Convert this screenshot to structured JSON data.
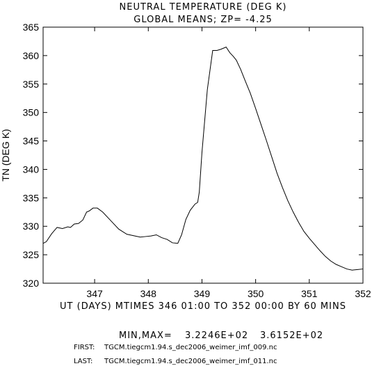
{
  "chart_data": {
    "type": "line",
    "title": "NEUTRAL TEMPERATURE (DEG K)",
    "subtitle": "GLOBAL MEANS; ZP= -4.25",
    "ylabel": "TN (DEG K)",
    "xlabel": "UT (DAYS) MTIMES 346 01:00 TO 352 00:00 BY    60 MINS",
    "xlim": [
      346.04,
      352.0
    ],
    "ylim": [
      320,
      365
    ],
    "xticks": [
      347,
      348,
      349,
      350,
      351,
      352
    ],
    "yticks": [
      320,
      325,
      330,
      335,
      340,
      345,
      350,
      355,
      360,
      365
    ],
    "grid": false,
    "series": [
      {
        "x": [
          346.04,
          346.1,
          346.2,
          346.3,
          346.4,
          346.5,
          346.55,
          346.62,
          346.7,
          346.78,
          346.85,
          346.9,
          346.97,
          347.05,
          347.15,
          347.3,
          347.45,
          347.6,
          347.75,
          347.85,
          347.95,
          348.05,
          348.15,
          348.25,
          348.35,
          348.45,
          348.55,
          348.62,
          348.7,
          348.78,
          348.87,
          348.92,
          348.95,
          349.0,
          349.1,
          349.2,
          349.28,
          349.35,
          349.45,
          349.52,
          349.58,
          349.64,
          349.72,
          349.8,
          349.9,
          350.0,
          350.1,
          350.2,
          350.3,
          350.4,
          350.5,
          350.6,
          350.7,
          350.8,
          350.9,
          351.0,
          351.1,
          351.2,
          351.3,
          351.4,
          351.5,
          351.6,
          351.7,
          351.8,
          351.9,
          352.0
        ],
        "values": [
          327.0,
          327.3,
          328.7,
          329.8,
          329.6,
          329.9,
          329.8,
          330.4,
          330.5,
          331.1,
          332.5,
          332.7,
          333.2,
          333.2,
          332.5,
          331.0,
          329.5,
          328.6,
          328.3,
          328.1,
          328.2,
          328.3,
          328.5,
          328.0,
          327.7,
          327.1,
          327.0,
          328.5,
          331.2,
          332.8,
          333.9,
          334.2,
          336.0,
          343.0,
          354.0,
          360.9,
          360.9,
          361.1,
          361.5,
          360.5,
          359.9,
          359.2,
          357.6,
          355.7,
          353.4,
          350.7,
          347.9,
          345.1,
          342.2,
          339.3,
          336.8,
          334.5,
          332.5,
          330.7,
          329.1,
          327.9,
          326.8,
          325.7,
          324.7,
          323.9,
          323.3,
          322.9,
          322.5,
          322.3,
          322.4,
          322.5
        ]
      }
    ],
    "footer": {
      "minmax_label": "MIN,MAX=",
      "min": "3.2246E+02",
      "max": "3.6152E+02",
      "first_label": "FIRST:",
      "first_file": "TGCM.tiegcm1.94.s_dec2006_weimer_imf_009.nc",
      "last_label": "LAST:",
      "last_file": "TGCM.tiegcm1.94.s_dec2006_weimer_imf_011.nc"
    }
  }
}
